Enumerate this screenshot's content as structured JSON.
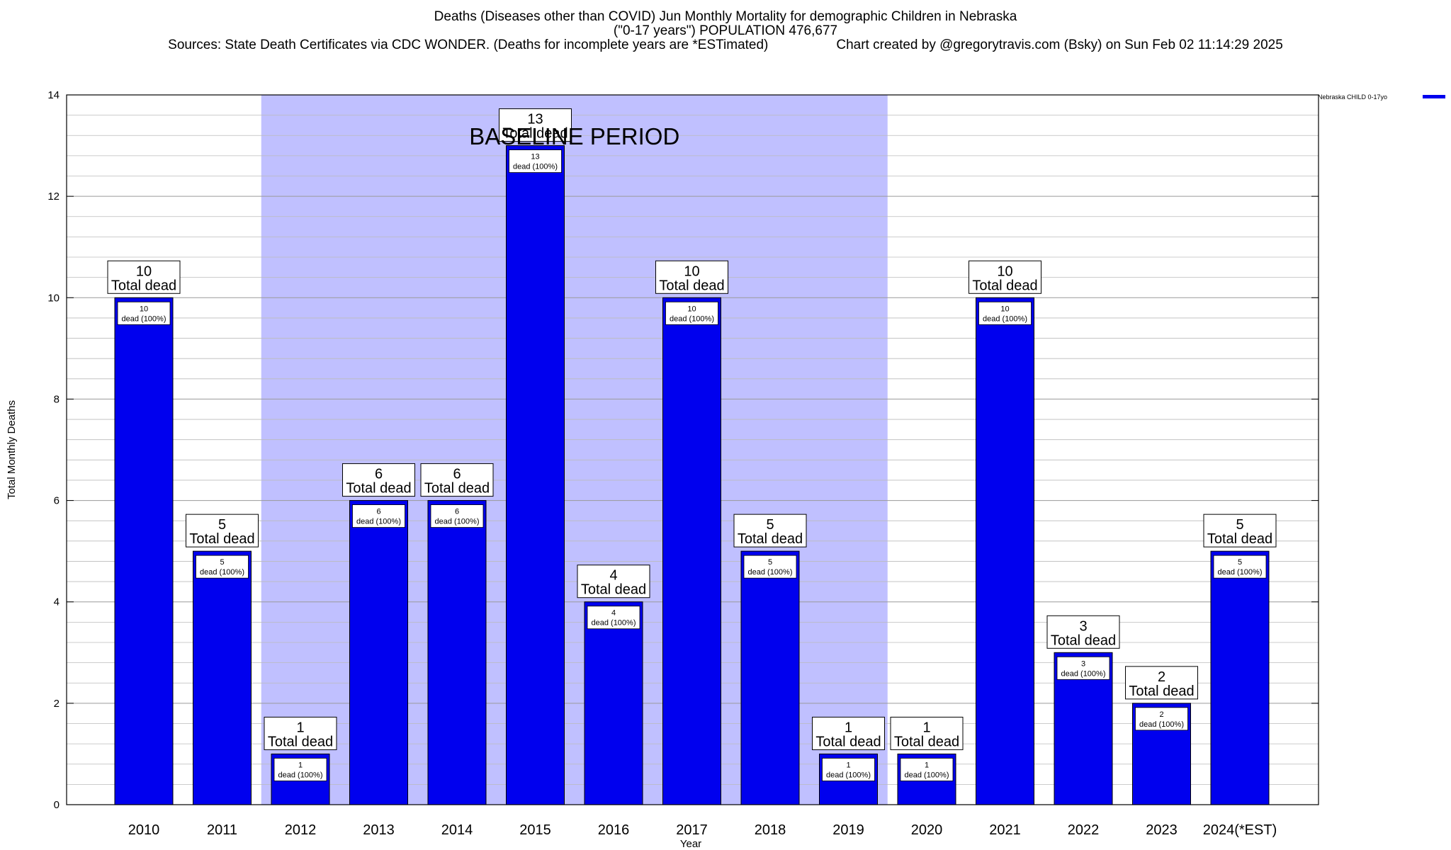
{
  "header": {
    "title_line1": "Deaths (Diseases other than COVID) Jun Monthly Mortality for demographic Children in Nebraska",
    "title_line2": "(\"0-17 years\") POPULATION 476,677",
    "sources": "Sources: State Death Certificates via CDC WONDER. (Deaths for incomplete years are *ESTimated)",
    "credit": "Chart created by @gregorytravis.com (Bsky) on Sun Feb 02 11:14:29 2025"
  },
  "colors": {
    "bar": "#0000ee",
    "baseline_shade": "#c0c0ff",
    "grid": "#bbbbbb"
  },
  "chart_data": {
    "type": "bar",
    "title": "Deaths (Diseases other than COVID) Jun Monthly Mortality for demographic Children in Nebraska",
    "xlabel": "Year",
    "ylabel": "Total Monthly Deaths",
    "ylim": [
      0,
      14
    ],
    "yticks": [
      0,
      2,
      4,
      6,
      8,
      10,
      12,
      14
    ],
    "grid": true,
    "legend_position": "top-right",
    "categories": [
      "2010",
      "2011",
      "2012",
      "2013",
      "2014",
      "2015",
      "2016",
      "2017",
      "2018",
      "2019",
      "2020",
      "2021",
      "2022",
      "2023",
      "2024(*EST)"
    ],
    "series": [
      {
        "name": "Nebraska CHILD 0-17yo",
        "values": [
          10,
          5,
          1,
          6,
          6,
          13,
          4,
          10,
          5,
          1,
          1,
          10,
          3,
          2,
          5
        ]
      }
    ],
    "total_label_suffix": "Total dead",
    "inner_label_suffix": "dead (100%)",
    "baseline_period": {
      "label": "BASELINE PERIOD",
      "from": "2012",
      "to": "2019"
    }
  }
}
